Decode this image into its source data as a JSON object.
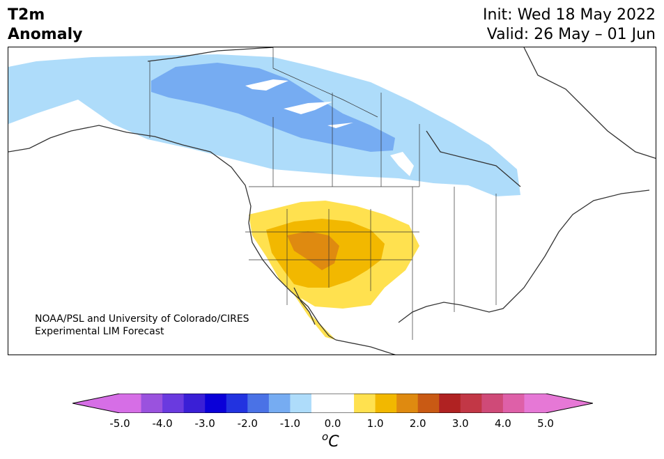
{
  "title": {
    "left_line1": "T2m",
    "left_line2": "Anomaly",
    "init": "Init: Wed 18 May 2022",
    "valid": "Valid: 26 May – 01 Jun"
  },
  "credit": {
    "line1": "NOAA/PSL and University of Colorado/CIRES",
    "line2": "Experimental LIM Forecast"
  },
  "colorbar": {
    "min": -5.0,
    "max": 5.0,
    "unit_base": "C",
    "unit_sup": "o",
    "ticks": [
      "-5.0",
      "-4.0",
      "-3.0",
      "-2.0",
      "-1.0",
      "0.0",
      "1.0",
      "2.0",
      "3.0",
      "4.0",
      "5.0"
    ],
    "colors": [
      "#d66ee6",
      "#9a52de",
      "#6a3adf",
      "#3a1fd6",
      "#0a00d8",
      "#2233e0",
      "#4a72e6",
      "#76acf2",
      "#aedcfa",
      "#ffffff",
      "#ffffff",
      "#ffe14f",
      "#f2b800",
      "#df8a10",
      "#c95a14",
      "#b02222",
      "#c23746",
      "#cf4a78",
      "#de60a8",
      "#e678d6"
    ],
    "extend_low_color": "#d66ee6",
    "extend_high_color": "#e678d6"
  },
  "anomaly_levels": {
    "light_blue": "#aedcfa",
    "medium_blue": "#76acf2",
    "yellow": "#ffe14f",
    "gold": "#f2b800",
    "orange": "#df8a10"
  }
}
